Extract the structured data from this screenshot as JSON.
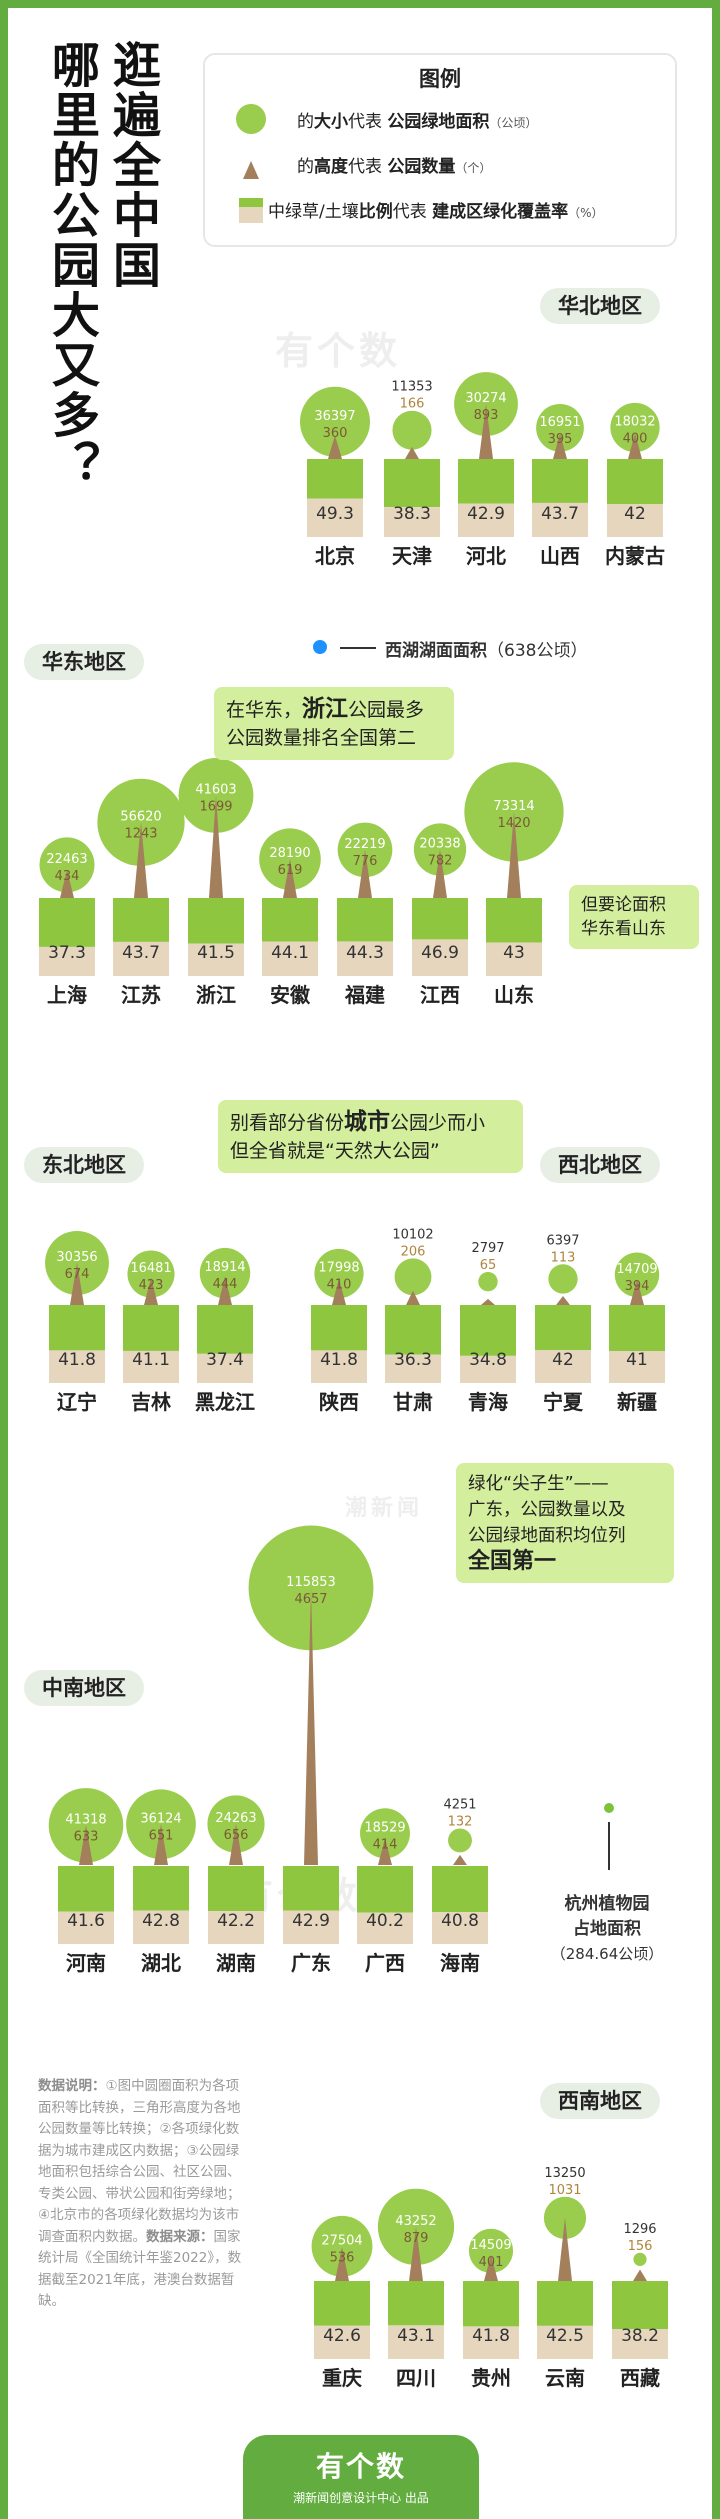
{
  "title_line1": "逛遍全中国",
  "title_line2": "哪里的公园大又多？",
  "legend": {
    "title": "图例",
    "row1_pre": "的",
    "row1_key": "大小",
    "row1_mid": "代表 ",
    "row1_metric": "公园绿地面积",
    "row1_unit": "（公顷）",
    "row2_pre": "的",
    "row2_key": "高度",
    "row2_mid": "代表 ",
    "row2_metric": "公园数量",
    "row2_unit": "（个）",
    "row3_pre": "中绿草/土壤",
    "row3_key": "比例",
    "row3_mid": "代表 ",
    "row3_metric": "建成区绿化覆盖率",
    "row3_unit": "（%）"
  },
  "regions": {
    "north": "华北地区",
    "east": "华东地区",
    "northeast": "东北地区",
    "northwest": "西北地区",
    "centralsouth": "中南地区",
    "southwest": "西南地区"
  },
  "annotations": {
    "xihu": "西湖湖面面积",
    "xihu_value": "（638公顷）",
    "zhejiang_a": "在华东，",
    "zhejiang_b": "浙江",
    "zhejiang_c": "公园最多",
    "zhejiang_d": "公园数量排名全国第二",
    "shandong_a": "但要论面积",
    "shandong_b": "华东看山东",
    "qinghai_a": "别看部分省份",
    "qinghai_b": "城市",
    "qinghai_c": "公园少而小",
    "qinghai_d": "但全省就是“天然大公园”",
    "guangdong_a": "绿化“尖子生”——",
    "guangdong_b": "广东，公园数量以及",
    "guangdong_c": "公园绿地面积均位列",
    "guangdong_d": "全国第一",
    "hangzhou_a": "杭州植物园",
    "hangzhou_b": "占地面积",
    "hangzhou_c": "（284.64公顷）"
  },
  "footnote_label": "数据说明：",
  "footnote_text": "①图中圆圈面积为各项面积等比转换，三角形高度为各地公园数量等比转换；②各项绿化数据为城市建成区内数据；③公园绿地面积包括综合公园、社区公园、专类公园、带状公园和街旁绿地；④北京市的各项绿化数据均为该市调查面积内数据。",
  "source_label": "数据来源：",
  "source_text": "国家统计局《全国统计年鉴2022》，数据截至2021年底，港澳台数据暂缺。",
  "footer_logo": "有个数",
  "footer_sub": "潮新闻创意设计中心 出品",
  "watermark": "有个数",
  "watermark2": "潮新闻",
  "colors": {
    "frame": "#63ad40",
    "canopy": "#9acd4d",
    "trunk": "#a37f5c",
    "grass": "#8ec63f",
    "soil": "#e6d6bd",
    "callout": "#d3ee9c",
    "lake": "#1e90ff"
  },
  "chart_data": [
    {
      "type": "bubble",
      "region": "华北地区",
      "categories": [
        "北京",
        "天津",
        "河北",
        "山西",
        "内蒙古"
      ],
      "park_area_ha": [
        36397,
        11353,
        30274,
        16951,
        18032
      ],
      "park_count": [
        360,
        166,
        893,
        395,
        400
      ],
      "green_coverage_pct": [
        49.3,
        38.3,
        42.9,
        43.7,
        42
      ]
    },
    {
      "type": "bubble",
      "region": "华东地区",
      "categories": [
        "上海",
        "江苏",
        "浙江",
        "安徽",
        "福建",
        "江西",
        "山东"
      ],
      "park_area_ha": [
        22463,
        56620,
        41603,
        28190,
        22219,
        20338,
        73314
      ],
      "park_count": [
        434,
        1243,
        1699,
        619,
        776,
        782,
        1420
      ],
      "green_coverage_pct": [
        37.3,
        43.7,
        41.5,
        44.1,
        44.3,
        46.9,
        43
      ]
    },
    {
      "type": "bubble",
      "region": "东北地区",
      "categories": [
        "辽宁",
        "吉林",
        "黑龙江"
      ],
      "park_area_ha": [
        30356,
        16481,
        18914
      ],
      "park_count": [
        674,
        423,
        444
      ],
      "green_coverage_pct": [
        41.8,
        41.1,
        37.4
      ]
    },
    {
      "type": "bubble",
      "region": "西北地区",
      "categories": [
        "陕西",
        "甘肃",
        "青海",
        "宁夏",
        "新疆"
      ],
      "park_area_ha": [
        17998,
        10102,
        2797,
        6397,
        14709
      ],
      "park_count": [
        410,
        206,
        65,
        113,
        394
      ],
      "green_coverage_pct": [
        41.8,
        36.3,
        34.8,
        42,
        41
      ]
    },
    {
      "type": "bubble",
      "region": "中南地区",
      "categories": [
        "河南",
        "湖北",
        "湖南",
        "广东",
        "广西",
        "海南"
      ],
      "park_area_ha": [
        41318,
        36124,
        24263,
        115853,
        18529,
        4251
      ],
      "park_count": [
        633,
        651,
        656,
        4657,
        414,
        132
      ],
      "green_coverage_pct": [
        41.6,
        42.8,
        42.2,
        42.9,
        40.2,
        40.8
      ]
    },
    {
      "type": "bubble",
      "region": "西南地区",
      "categories": [
        "重庆",
        "四川",
        "贵州",
        "云南",
        "西藏"
      ],
      "park_area_ha": [
        27504,
        43252,
        14509,
        13250,
        1296
      ],
      "park_count": [
        536,
        879,
        401,
        1031,
        156
      ],
      "green_coverage_pct": [
        42.6,
        43.1,
        41.8,
        42.5,
        38.2
      ]
    }
  ]
}
